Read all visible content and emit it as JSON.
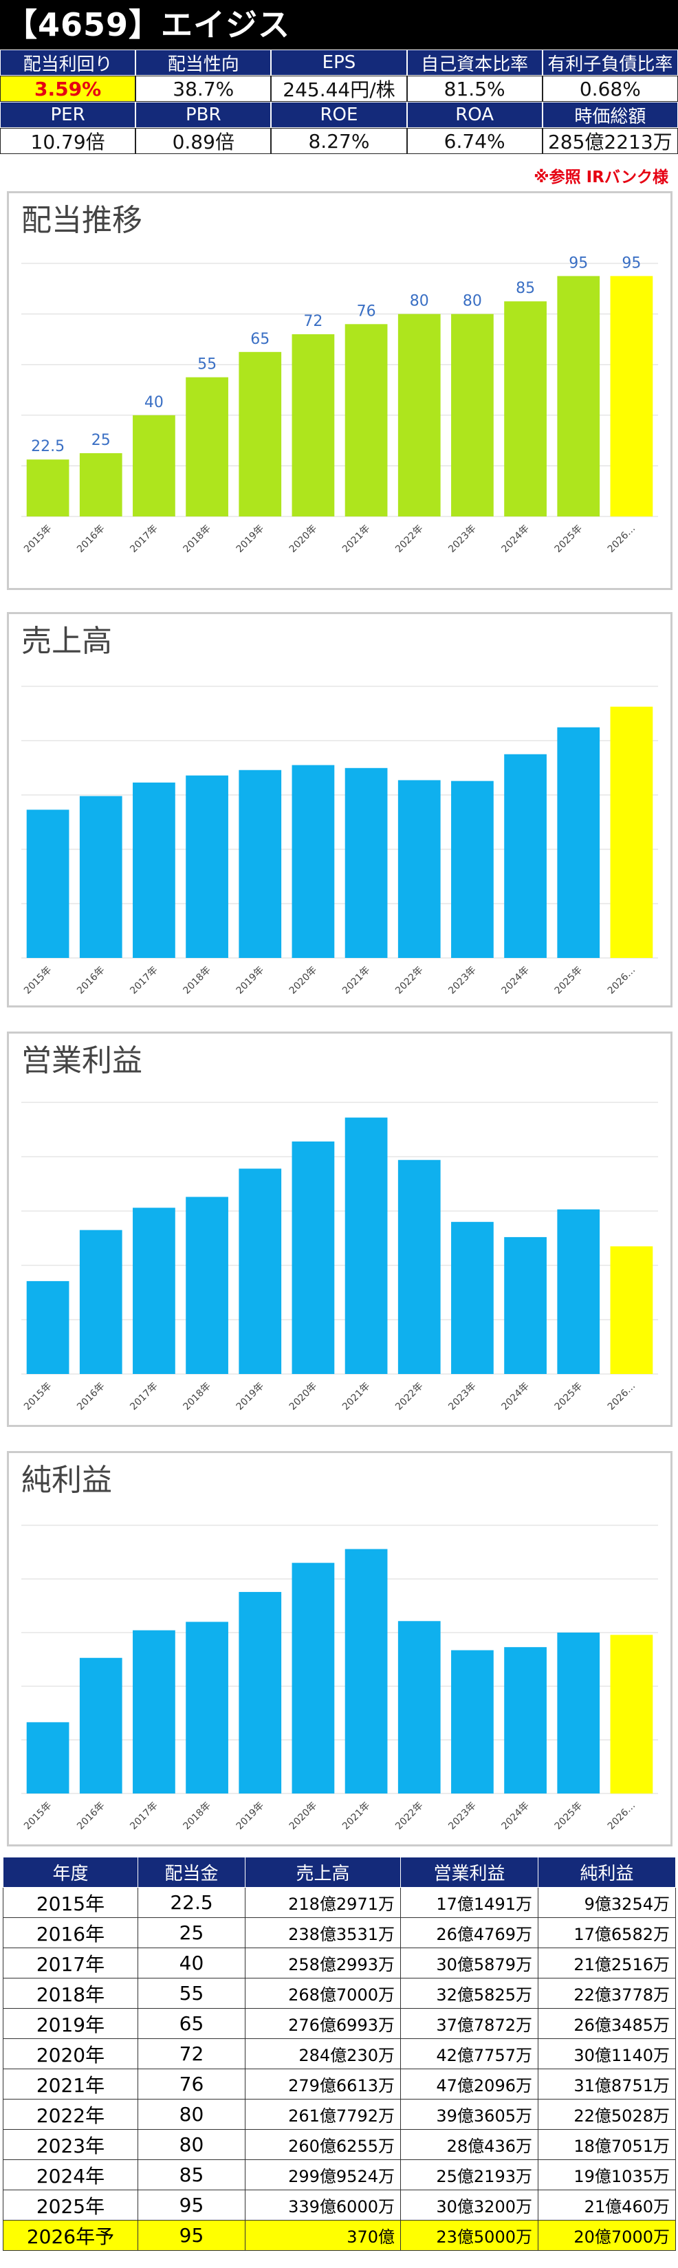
{
  "header": {
    "title": "【4659】エイジス"
  },
  "metrics": {
    "row1": [
      {
        "label": "配当利回り",
        "value": "3.59%",
        "highlight": true
      },
      {
        "label": "配当性向",
        "value": "38.7%"
      },
      {
        "label": "EPS",
        "value": "245.44円/株"
      },
      {
        "label": "自己資本比率",
        "value": "81.5%"
      },
      {
        "label": "有利子負債比率",
        "value": "0.68%"
      }
    ],
    "row2": [
      {
        "label": "PER",
        "value": "10.79倍"
      },
      {
        "label": "PBR",
        "value": "0.89倍"
      },
      {
        "label": "ROE",
        "value": "8.27%"
      },
      {
        "label": "ROA",
        "value": "6.74%"
      },
      {
        "label": "時価総額",
        "value": "285億2213万"
      }
    ],
    "note": "※参照 IRバンク様"
  },
  "colors": {
    "bar_green": "#aee51d",
    "bar_blue": "#0fb0ee",
    "bar_forecast": "#ffff00",
    "label_blue": "#3a6fc4",
    "header_navy": "#142a7a",
    "note_red": "#e60012"
  },
  "chart_data": [
    {
      "type": "bar",
      "title": "配当推移",
      "categories": [
        "2015年",
        "2016年",
        "2017年",
        "2018年",
        "2019年",
        "2020年",
        "2021年",
        "2022年",
        "2023年",
        "2024年",
        "2025年",
        "2026…"
      ],
      "values": [
        22.5,
        25,
        40,
        55,
        65,
        72,
        76,
        80,
        80,
        85,
        95,
        95
      ],
      "labels": [
        "22.5",
        "25",
        "40",
        "55",
        "65",
        "72",
        "76",
        "80",
        "80",
        "85",
        "95",
        "95"
      ],
      "ylim": [
        0,
        100
      ],
      "forecast_index": 11,
      "grid": true
    },
    {
      "type": "bar",
      "title": "売上高",
      "categories": [
        "2015年",
        "2016年",
        "2017年",
        "2018年",
        "2019年",
        "2020年",
        "2021年",
        "2022年",
        "2023年",
        "2024年",
        "2025年",
        "2026…"
      ],
      "values": [
        218.3,
        238.4,
        258.3,
        268.7,
        276.7,
        284.0,
        279.7,
        261.8,
        260.6,
        300.0,
        339.6,
        370.0
      ],
      "ylim": [
        0,
        400
      ],
      "forecast_index": 11,
      "grid": true
    },
    {
      "type": "bar",
      "title": "営業利益",
      "categories": [
        "2015年",
        "2016年",
        "2017年",
        "2018年",
        "2019年",
        "2020年",
        "2021年",
        "2022年",
        "2023年",
        "2024年",
        "2025年",
        "2026…"
      ],
      "values": [
        17.1,
        26.5,
        30.6,
        32.6,
        37.8,
        42.8,
        47.2,
        39.4,
        28.0,
        25.2,
        30.3,
        23.5
      ],
      "ylim": [
        0,
        50
      ],
      "forecast_index": 11,
      "grid": true
    },
    {
      "type": "bar",
      "title": "純利益",
      "categories": [
        "2015年",
        "2016年",
        "2017年",
        "2018年",
        "2019年",
        "2020年",
        "2021年",
        "2022年",
        "2023年",
        "2024年",
        "2025年",
        "2026…"
      ],
      "values": [
        9.3,
        17.7,
        21.3,
        22.4,
        26.3,
        30.1,
        31.9,
        22.5,
        18.7,
        19.1,
        21.0,
        20.7
      ],
      "ylim": [
        0,
        35
      ],
      "forecast_index": 11,
      "grid": true
    }
  ],
  "table": {
    "headers": [
      "年度",
      "配当金",
      "売上高",
      "営業利益",
      "純利益"
    ],
    "rows": [
      [
        "2015年",
        "22.5",
        "218億2971万",
        "17億1491万",
        "9億3254万"
      ],
      [
        "2016年",
        "25",
        "238億3531万",
        "26億4769万",
        "17億6582万"
      ],
      [
        "2017年",
        "40",
        "258億2993万",
        "30億5879万",
        "21億2516万"
      ],
      [
        "2018年",
        "55",
        "268億7000万",
        "32億5825万",
        "22億3778万"
      ],
      [
        "2019年",
        "65",
        "276億6993万",
        "37億7872万",
        "26億3485万"
      ],
      [
        "2020年",
        "72",
        "284億230万",
        "42億7757万",
        "30億1140万"
      ],
      [
        "2021年",
        "76",
        "279億6613万",
        "47億2096万",
        "31億8751万"
      ],
      [
        "2022年",
        "80",
        "261億7792万",
        "39億3605万",
        "22億5028万"
      ],
      [
        "2023年",
        "80",
        "260億6255万",
        "28億436万",
        "18億7051万"
      ],
      [
        "2024年",
        "85",
        "299億9524万",
        "25億2193万",
        "19億1035万"
      ],
      [
        "2025年",
        "95",
        "339億6000万",
        "30億3200万",
        "21億460万"
      ],
      [
        "2026年予",
        "95",
        "370億",
        "23億5000万",
        "20億7000万"
      ]
    ]
  }
}
